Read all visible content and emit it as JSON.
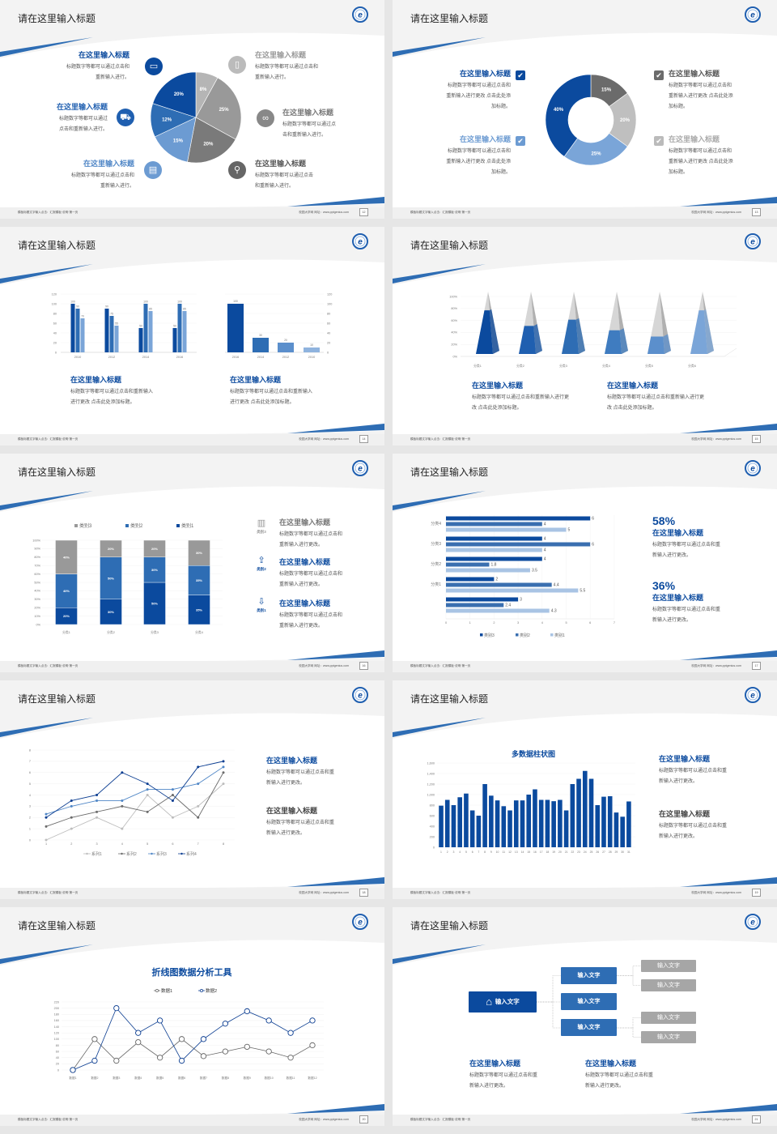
{
  "footer": {
    "left": "模板标题文字输入点击：汇报模板·说明·第一页",
    "right": "校园大学网  网址：www.pptgenius.com"
  },
  "colors": {
    "dark_blue": "#0b4a9e",
    "mid_blue": "#2e6db4",
    "light_blue": "#7aa5d8",
    "gray": "#999999",
    "background": "#f3f3f3"
  },
  "slides": [
    {
      "title": "请在这里输入标题",
      "page": "12",
      "icons": [
        "monitor-icon",
        "car-icon",
        "book-icon",
        "phone-icon",
        "binoculars-icon",
        "bicycle-icon"
      ],
      "items": [
        {
          "title": "在这里输入标题",
          "desc": [
            "标题数字等都可以通过点击和",
            "重新输入进行。"
          ]
        },
        {
          "title": "在这里输入标题",
          "desc": [
            "标题数字等都可以通过",
            "点击和重新输入进行。"
          ]
        },
        {
          "title": "在这里输入标题",
          "desc": [
            "标题数字等都可以通过点击和",
            "重新输入进行。"
          ]
        },
        {
          "title": "在这里输入标题",
          "desc": [
            "标题数字等都可以通过点击和",
            "重新输入进行。"
          ]
        },
        {
          "title": "在这里输入标题",
          "desc": [
            "标题数字等都可以通过点",
            "击和重新输入进行。"
          ]
        },
        {
          "title": "在这里输入标题",
          "desc": [
            "标题数字等都可以通过点击",
            "和重新输入进行。"
          ]
        }
      ]
    },
    {
      "title": "请在这里输入标题",
      "page": "13",
      "items": [
        {
          "title": "在这里输入标题",
          "desc": [
            "标题数字等都可以通过点击和",
            "重新输入进行更改 点击此处添",
            "加标题。"
          ]
        },
        {
          "title": "在这里输入标题",
          "desc": [
            "标题数字等都可以通过点击和",
            "重新输入进行更改 点击此处添",
            "加标题。"
          ]
        },
        {
          "title": "在这里输入标题",
          "desc": [
            "标题数字等都可以通过点击和",
            "重新输入进行更改 点击此处添",
            "加标题。"
          ]
        },
        {
          "title": "在这里输入标题",
          "desc": [
            "标题数字等都可以通过点击和",
            "重新输入进行更改 点击此处添",
            "加标题。"
          ]
        }
      ]
    },
    {
      "title": "请在这里输入标题",
      "page": "14",
      "items": [
        {
          "title": "在这里输入标题",
          "desc": [
            "标题数字等都可以通过点击和重新输入",
            "进行更改 点击此处添加标题。"
          ]
        },
        {
          "title": "在这里输入标题",
          "desc": [
            "标题数字等都可以通过点击和重新输入",
            "进行更改 点击此处添加标题。"
          ]
        }
      ]
    },
    {
      "title": "请在这里输入标题",
      "page": "15",
      "items": [
        {
          "title": "在这里输入标题",
          "desc": [
            "标题数字等都可以通过点击和重新输入进行更",
            "改 点击此处添加标题。"
          ]
        },
        {
          "title": "在这里输入标题",
          "desc": [
            "标题数字等都可以通过点击和重新输入进行更",
            "改 点击此处添加标题。"
          ]
        }
      ]
    },
    {
      "title": "请在这里输入标题",
      "page": "16",
      "icons": [
        "bar-chart-icon",
        "upload-icon",
        "download-icon"
      ],
      "icon_labels": [
        "类别3",
        "类别2",
        "类别1"
      ],
      "items": [
        {
          "title": "在这里输入标题",
          "desc": [
            "标题数字等都可以通过点击和",
            "重新输入进行更改。"
          ]
        },
        {
          "title": "在这里输入标题",
          "desc": [
            "标题数字等都可以通过点击和",
            "重新输入进行更改。"
          ]
        },
        {
          "title": "在这里输入标题",
          "desc": [
            "标题数字等都可以通过点击和",
            "重新输入进行更改。"
          ]
        }
      ]
    },
    {
      "title": "请在这里输入标题",
      "page": "17",
      "items": [
        {
          "value": "58%",
          "title": "在这里输入标题",
          "desc": [
            "标题数字等都可以通过点击和重",
            "新输入进行更改。"
          ]
        },
        {
          "value": "36%",
          "title": "在这里输入标题",
          "desc": [
            "标题数字等都可以通过点击和重",
            "新输入进行更改。"
          ]
        }
      ]
    },
    {
      "title": "请在这里输入标题",
      "page": "18",
      "items": [
        {
          "title": "在这里输入标题",
          "desc": [
            "标题数字等都可以通过点击和重",
            "新输入进行更改。"
          ]
        },
        {
          "title": "在这里输入标题",
          "desc": [
            "标题数字等都可以通过点击和重",
            "新输入进行更改。"
          ]
        }
      ]
    },
    {
      "title": "请在这里输入标题",
      "page": "19",
      "items": [
        {
          "title": "在这里输入标题",
          "desc": [
            "标题数字等都可以通过点击和重",
            "新输入进行更改。"
          ]
        },
        {
          "title": "在这里输入标题",
          "desc": [
            "标题数字等都可以通过点击和重",
            "新输入进行更改。"
          ]
        }
      ]
    },
    {
      "title": "请在这里输入标题",
      "page": "20"
    },
    {
      "title": "请在这里输入标题",
      "page": "21",
      "tree": {
        "root": "输入文字",
        "root_icon": "home-icon",
        "children": [
          {
            "label": "输入文字",
            "leaves": [
              "输入文字",
              "输入文字"
            ]
          },
          {
            "label": "输入文字",
            "leaves": []
          },
          {
            "label": "输入文字",
            "leaves": [
              "输入文字",
              "输入文字"
            ]
          }
        ]
      },
      "items": [
        {
          "title": "在这里输入标题",
          "desc": [
            "标题数字等都可以通过点击和重",
            "新输入进行更改。"
          ]
        },
        {
          "title": "在这里输入标题",
          "desc": [
            "标题数字等都可以通过点击和重",
            "新输入进行更改。"
          ]
        }
      ]
    }
  ],
  "chart_data": [
    {
      "type": "pie",
      "values": [
        8,
        25,
        20,
        15,
        12,
        20
      ],
      "labels": [
        "8%",
        "25%",
        "20%",
        "15%",
        "12%",
        "20%"
      ],
      "colors": [
        "#b5b5b5",
        "#999999",
        "#7a7a7a",
        "#6c9bd2",
        "#2e6db4",
        "#0b4a9e"
      ]
    },
    {
      "type": "pie",
      "donut": true,
      "values": [
        15,
        20,
        25,
        40
      ],
      "labels": [
        "15%",
        "20%",
        "25%",
        "40%"
      ],
      "colors": [
        "#6b6b6b",
        "#bfbfbf",
        "#7aa5d8",
        "#0b4a9e"
      ]
    },
    {
      "type": "bar",
      "categories": [
        "2010",
        "2012",
        "2014",
        "2016"
      ],
      "ylim": [
        0,
        120
      ],
      "yticks": [
        "0",
        "20",
        "40",
        "60",
        "80",
        "100",
        "120"
      ],
      "series": [
        {
          "values": [
            100,
            90,
            50,
            50
          ]
        },
        {
          "values": [
            90,
            75,
            100,
            100
          ]
        },
        {
          "values": [
            70,
            55,
            85,
            85
          ]
        }
      ],
      "colors": [
        "#0b4a9e",
        "#2e6db4",
        "#7aa5d8"
      ]
    },
    {
      "type": "bar",
      "categories": [
        "2016",
        "2014",
        "2012",
        "2010"
      ],
      "values": [
        100,
        30,
        20,
        10
      ],
      "ylim": [
        0,
        120
      ],
      "yticks": [
        "0",
        "20",
        "40",
        "60",
        "80",
        "100",
        "120"
      ],
      "y_axis": "right",
      "colors": [
        "#0b4a9e",
        "#2e6db4",
        "#5b8fcc",
        "#8fb3de"
      ]
    },
    {
      "type": "bar",
      "style": "3d-pyramid",
      "categories": [
        "分类1",
        "分类2",
        "分类3",
        "分类4",
        "分类5",
        "分类6"
      ],
      "values": [
        70,
        45,
        55,
        38,
        28,
        70
      ],
      "ylim": [
        0,
        100
      ],
      "yticks": [
        "0%",
        "20%",
        "40%",
        "60%",
        "80%",
        "100%"
      ],
      "colors": [
        "#0b4a9e",
        "#1f5fb0",
        "#2e6db4",
        "#3f7cc0",
        "#5b8fcc",
        "#7aa5d8"
      ]
    },
    {
      "type": "bar",
      "stacked": true,
      "categories": [
        "分类1",
        "分类2",
        "分类3",
        "分类4"
      ],
      "ylim": [
        0,
        100
      ],
      "yticks": [
        "0%",
        "10%",
        "20%",
        "30%",
        "40%",
        "50%",
        "60%",
        "70%",
        "80%",
        "90%",
        "100%"
      ],
      "legend": "top",
      "series": [
        {
          "name": "类别1",
          "values": [
            20,
            30,
            50,
            35
          ],
          "color": "#0b4a9e"
        },
        {
          "name": "类别2",
          "values": [
            40,
            50,
            30,
            35
          ],
          "color": "#2e6db4"
        },
        {
          "name": "类别3",
          "values": [
            40,
            20,
            20,
            30
          ],
          "color": "#999999"
        }
      ]
    },
    {
      "type": "bar",
      "orientation": "horizontal",
      "categories": [
        "",
        "分类1",
        "分类2",
        "分类3",
        "分类4"
      ],
      "xlim": [
        0,
        7
      ],
      "xticks": [
        "0",
        "1",
        "2",
        "3",
        "4",
        "5",
        "6",
        "7"
      ],
      "legend": "bottom",
      "series": [
        {
          "name": "类别3",
          "values": [
            3,
            2,
            4,
            4,
            6
          ],
          "color": "#0b4a9e"
        },
        {
          "name": "类别2",
          "values": [
            2.4,
            4.4,
            1.8,
            6,
            4
          ],
          "color": "#3a6fb0"
        },
        {
          "name": "类别1",
          "values": [
            4.3,
            5.5,
            3.5,
            4,
            5
          ],
          "color": "#a9c4e4"
        }
      ]
    },
    {
      "type": "line",
      "x": [
        "1",
        "2",
        "3",
        "4",
        "5",
        "6",
        "7",
        "8"
      ],
      "ylim": [
        0,
        8
      ],
      "yticks": [
        "0",
        "1",
        "2",
        "3",
        "4",
        "5",
        "6",
        "7",
        "8"
      ],
      "legend": "bottom",
      "series": [
        {
          "name": "系列1",
          "values": [
            0,
            1,
            2,
            1,
            4,
            2,
            3,
            5
          ],
          "color": "#bdbdbd"
        },
        {
          "name": "系列2",
          "values": [
            1.2,
            2,
            2.5,
            3,
            2.5,
            4,
            2,
            6
          ],
          "color": "#6b6b6b"
        },
        {
          "name": "系列3",
          "values": [
            2.3,
            3,
            3.5,
            3.5,
            4.5,
            4.5,
            5,
            6.5
          ],
          "color": "#4f86c6"
        },
        {
          "name": "系列4",
          "values": [
            2,
            3.5,
            4,
            6,
            5,
            3.5,
            6.5,
            7
          ],
          "color": "#0b3d91"
        }
      ]
    },
    {
      "type": "bar",
      "title": "多数据柱状图",
      "ylim": [
        0,
        1600
      ],
      "yticks": [
        "0",
        "200",
        "400",
        "600",
        "800",
        "1,000",
        "1,200",
        "1,400",
        "1,600"
      ],
      "categories": [
        "1",
        "2",
        "3",
        "4",
        "5",
        "6",
        "7",
        "8",
        "9",
        "10",
        "11",
        "12",
        "13",
        "14",
        "15",
        "16",
        "17",
        "18",
        "19",
        "20",
        "21",
        "22",
        "23",
        "24",
        "25",
        "26",
        "27",
        "28",
        "29",
        "30",
        "31"
      ],
      "values": [
        790,
        900,
        800,
        950,
        1020,
        700,
        600,
        1200,
        980,
        890,
        780,
        700,
        890,
        890,
        1000,
        1100,
        900,
        900,
        875,
        900,
        700,
        1200,
        1300,
        1450,
        1300,
        800,
        960,
        970,
        660,
        580,
        870
      ],
      "color": "#0b4a9e"
    },
    {
      "type": "line",
      "title": "折线图数据分析工具",
      "ylim": [
        0,
        220
      ],
      "legend": "top",
      "yticks": [
        "0",
        "20",
        "40",
        "60",
        "80",
        "100",
        "120",
        "140",
        "160",
        "180",
        "200",
        "220"
      ],
      "x": [
        "数据1",
        "数据2",
        "数据3",
        "数据4",
        "数据5",
        "数据6",
        "数据7",
        "数据8",
        "数据9",
        "数据10",
        "数据11",
        "数据12"
      ],
      "series": [
        {
          "name": "数据1",
          "values": [
            0,
            100,
            30,
            90,
            40,
            100,
            45,
            60,
            75,
            60,
            40,
            80
          ],
          "color": "#666666"
        },
        {
          "name": "数据2",
          "values": [
            0,
            30,
            200,
            120,
            160,
            30,
            100,
            150,
            190,
            160,
            120,
            160
          ],
          "color": "#0b3d91"
        }
      ]
    }
  ]
}
